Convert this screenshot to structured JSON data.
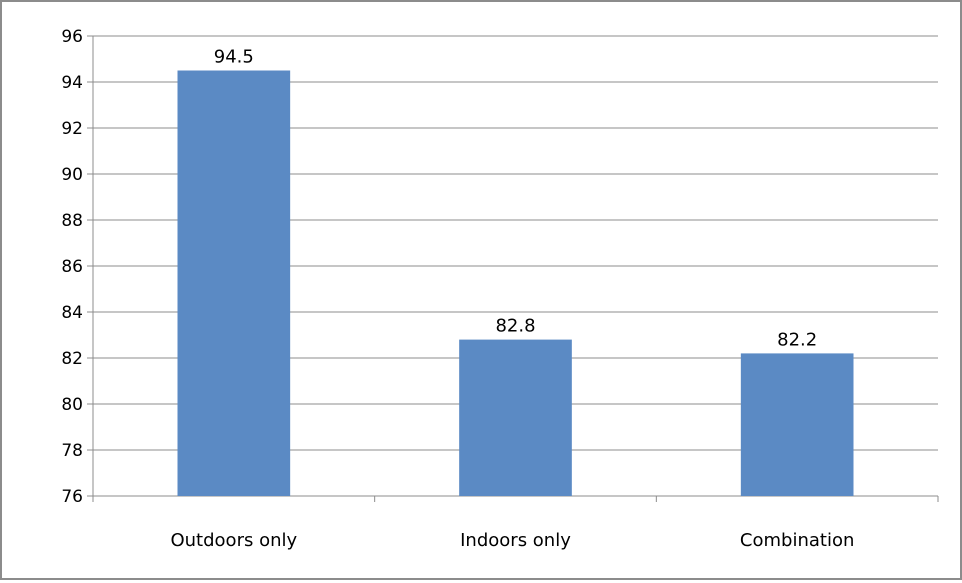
{
  "chart_data": {
    "type": "bar",
    "categories": [
      "Outdoors only",
      "Indoors only",
      "Combination"
    ],
    "values": [
      94.5,
      82.8,
      82.2
    ],
    "data_labels": [
      "94.5",
      "82.8",
      "82.2"
    ],
    "ylim": [
      76,
      96
    ],
    "yticks": [
      "76",
      "78",
      "80",
      "82",
      "84",
      "86",
      "88",
      "90",
      "92",
      "94",
      "96"
    ],
    "title": "",
    "xlabel": "",
    "ylabel": "",
    "grid": true,
    "legend": "none",
    "bar_color": "#5b8ac4",
    "grid_color": "#8c8c8c"
  }
}
